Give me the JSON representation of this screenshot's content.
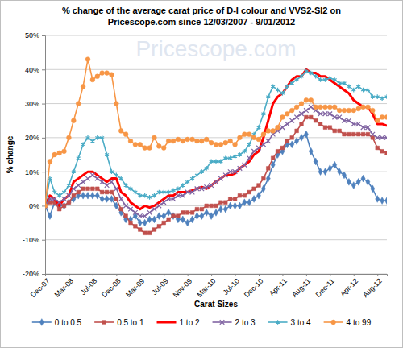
{
  "chart_data": {
    "type": "line",
    "title": "% change of the average carat price of D-I colour and VVS2-SI2 on Pricescope.com since 12/03/2007 - 9/01/2012",
    "annotations": [
      "Pricescope.com"
    ],
    "x_label": "Carat Sizes",
    "y_label": "% change",
    "categories": [
      "Dec-07",
      null,
      null,
      null,
      null,
      "Mar-08",
      null,
      null,
      null,
      null,
      "Jul-08",
      null,
      null,
      null,
      null,
      "Dec-08",
      null,
      null,
      null,
      null,
      "Mar-09",
      null,
      null,
      null,
      null,
      "Jul-09",
      null,
      null,
      null,
      null,
      "Nov-09",
      null,
      null,
      null,
      null,
      "Mar-10",
      null,
      null,
      null,
      null,
      "Jul-10",
      null,
      null,
      null,
      null,
      "Dec-10",
      null,
      null,
      null,
      null,
      "Apr-11",
      null,
      null,
      null,
      null,
      "Aug-11",
      null,
      null,
      null,
      null,
      "Dec-11",
      null,
      null,
      null,
      null,
      "Apr-12",
      null,
      null,
      null,
      null,
      "Aug-12",
      null,
      null
    ],
    "ylim": [
      -20,
      50
    ],
    "yticks": [
      {
        "value": -20,
        "label": "-20%"
      },
      {
        "value": -10,
        "label": "-10%"
      },
      {
        "value": 0,
        "label": "0%"
      },
      {
        "value": 10,
        "label": "10%"
      },
      {
        "value": 20,
        "label": "20%"
      },
      {
        "value": 30,
        "label": "30%"
      },
      {
        "value": 40,
        "label": "40%"
      },
      {
        "value": 50,
        "label": "50%"
      }
    ],
    "grid": true,
    "legend": "bottom",
    "series": [
      {
        "name": "0 to 0.5",
        "color": "#4f81bd",
        "marker": "diamond",
        "line_style": "solid",
        "values": [
          0,
          -3,
          1,
          0,
          0,
          1,
          2,
          3,
          3,
          3,
          3,
          3,
          2,
          2,
          2,
          0,
          -2,
          -4,
          -4,
          -3,
          -5,
          -5,
          -4,
          -4,
          -3,
          -3,
          -2,
          -3,
          -4,
          -4,
          -5,
          -4,
          -3,
          -3,
          -2,
          -3,
          -2,
          -1,
          -1,
          0,
          0,
          0,
          1,
          1,
          2,
          3,
          5,
          8,
          12,
          15,
          16,
          18,
          18,
          19,
          20,
          21,
          16,
          13,
          10,
          10,
          11,
          12,
          10,
          9,
          7,
          6,
          7,
          8,
          7,
          5,
          2,
          1.5,
          1.5
        ]
      },
      {
        "name": "0.5 to 1",
        "color": "#c0504d",
        "marker": "square",
        "line_style": "solid",
        "values": [
          0,
          1,
          1,
          -1,
          0,
          1,
          3,
          4,
          5,
          5,
          5,
          5,
          4,
          4,
          4,
          2,
          -1,
          -3,
          -5,
          -6,
          -7,
          -8,
          -8,
          -7,
          -6,
          -5,
          -4,
          -3,
          -3,
          -2,
          -2,
          -2,
          -1,
          -1,
          0,
          0,
          0,
          1,
          1,
          2,
          2,
          3,
          3,
          4,
          5,
          6,
          8,
          11,
          14,
          16,
          17,
          19,
          20,
          22,
          24,
          26,
          26,
          25,
          24,
          23,
          23,
          22,
          22,
          21,
          21,
          21,
          21,
          21,
          21,
          20,
          17,
          16,
          15.5
        ]
      },
      {
        "name": "1 to 2",
        "color": "#ff0000",
        "marker": "none",
        "line_style": "thick",
        "values": [
          0,
          3,
          2,
          0,
          2,
          3,
          7,
          8,
          9,
          10,
          10,
          9,
          8,
          7,
          8,
          8,
          4,
          3,
          1,
          0,
          -1,
          0,
          -0.5,
          0,
          1,
          2,
          3,
          3,
          4,
          4,
          4,
          4.5,
          5,
          5.5,
          5,
          6,
          7,
          8,
          9,
          9,
          9.5,
          11,
          12,
          13,
          15,
          16,
          20,
          25,
          30,
          32,
          33,
          35,
          37,
          38,
          38,
          40,
          39,
          39,
          38,
          38,
          37,
          36,
          35,
          34,
          33,
          31,
          30,
          29,
          29,
          27,
          24,
          24,
          23.5
        ]
      },
      {
        "name": "2 to 3",
        "color": "#8064a2",
        "marker": "x",
        "line_style": "solid",
        "values": [
          0,
          2,
          2,
          1,
          2,
          3,
          5,
          6,
          7,
          8,
          9,
          8,
          7,
          6,
          7,
          5,
          2,
          0,
          -1,
          -2,
          -3,
          -3,
          -2,
          -1,
          0,
          1,
          2,
          2,
          3,
          3,
          4,
          4,
          5,
          5,
          5.5,
          6,
          7,
          8,
          9,
          10,
          10,
          11,
          12,
          14,
          16,
          17,
          18,
          19,
          21,
          22,
          23,
          24,
          25,
          26,
          27,
          28,
          29,
          28,
          27,
          27,
          27,
          26,
          26,
          25,
          25,
          24,
          24,
          23,
          23,
          21,
          20,
          20,
          20
        ]
      },
      {
        "name": "3 to 4",
        "color": "#4bacc6",
        "marker": "star",
        "line_style": "solid",
        "values": [
          0,
          8,
          4,
          3,
          4,
          6,
          10,
          14,
          18,
          20,
          19,
          20,
          20,
          15,
          10,
          9,
          8,
          6,
          5,
          4,
          3,
          3,
          2.5,
          3,
          4,
          4,
          4,
          4.5,
          5,
          6,
          7,
          8,
          9,
          10,
          11,
          13,
          13,
          13,
          14,
          14,
          14.5,
          15,
          16,
          18,
          21,
          23,
          27,
          32,
          35,
          34,
          33,
          35,
          36,
          37,
          38,
          39.5,
          39,
          38,
          37,
          37,
          37.5,
          37,
          36,
          36,
          35,
          34,
          35,
          34,
          34,
          32,
          32,
          31.5,
          32
        ]
      },
      {
        "name": "4 to 99",
        "color": "#f79646",
        "marker": "circle",
        "line_style": "solid",
        "values": [
          0,
          13,
          15,
          15.5,
          16,
          20,
          25,
          30,
          35,
          43,
          37,
          38,
          39,
          39,
          38.5,
          30,
          22,
          21,
          19,
          18,
          18,
          17,
          17,
          20,
          17.5,
          17,
          19,
          19,
          19.5,
          19,
          19.5,
          19.5,
          19,
          19,
          19.5,
          18.5,
          18,
          18,
          18.5,
          19,
          18,
          20,
          21,
          21,
          20,
          19.5,
          21,
          22,
          22,
          23,
          26,
          27,
          28,
          29,
          30,
          31,
          31,
          29,
          29,
          29,
          29,
          29,
          28,
          28,
          28,
          28,
          28.5,
          29,
          29,
          28,
          25,
          26,
          26
        ]
      }
    ]
  }
}
